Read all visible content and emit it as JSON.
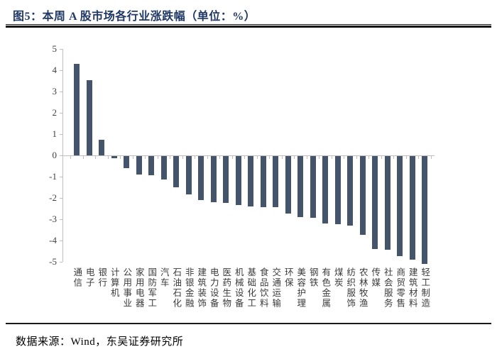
{
  "header": {
    "figure_label": "图5：",
    "title": "本周 A 股市场各行业涨跌幅（单位：%）",
    "title_color": "#1f3864"
  },
  "footer": {
    "source_label": "数据来源：",
    "source_text": "Wind，东吴证券研究所"
  },
  "chart_data": {
    "type": "bar",
    "title": "本周A股市场各行业涨跌幅",
    "unit": "%",
    "categories": [
      "通信",
      "电子",
      "银行",
      "计算机",
      "公用事业",
      "家用电器",
      "国防军工",
      "汽车",
      "石油石化",
      "非银金融",
      "建筑装饰",
      "电力设备",
      "医药生物",
      "机械设备",
      "基础化工",
      "食品饮料",
      "交通运输",
      "环保",
      "美容护理",
      "钢铁",
      "有色金属",
      "煤炭",
      "纺织服饰",
      "农林牧渔",
      "传媒",
      "社会服务",
      "商贸零售",
      "建筑材料",
      "轻工制造"
    ],
    "values": [
      4.3,
      3.55,
      0.75,
      -0.1,
      -0.55,
      -0.85,
      -0.9,
      -1.1,
      -1.45,
      -1.8,
      -2.05,
      -2.15,
      -2.2,
      -2.3,
      -2.35,
      -2.4,
      -2.4,
      -2.7,
      -2.85,
      -2.9,
      -3.15,
      -3.2,
      -3.25,
      -3.7,
      -4.35,
      -4.4,
      -4.7,
      -4.85,
      -5.05
    ],
    "ylim": [
      -5,
      5
    ],
    "yticks": [
      5,
      4,
      3,
      2,
      1,
      0,
      -1,
      -2,
      -3,
      -4,
      -5
    ],
    "bar_color": "#44546A",
    "axis_color": "#bfbfbf",
    "tick_label_color": "#404040",
    "grid": false,
    "legend": false,
    "xlabel": "",
    "ylabel": ""
  }
}
